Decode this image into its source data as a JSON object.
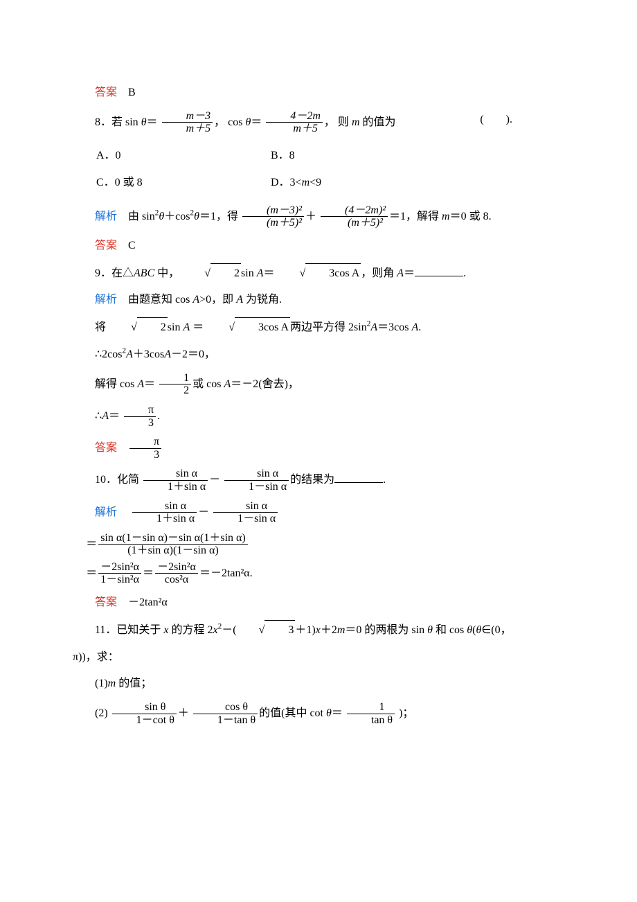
{
  "colors": {
    "red": "#d93025",
    "blue": "#1a6fd9",
    "black": "#000000",
    "bg": "#ffffff"
  },
  "typography": {
    "font_family": "SimSun, Times New Roman, serif",
    "body_fontsize_pt": 12,
    "line_height": 1.8
  },
  "labels": {
    "answer": "答案",
    "explain": "解析"
  },
  "q7": {
    "answer_value": "B"
  },
  "q8": {
    "stem_pre": "8．若 sin ",
    "var": "θ",
    "eq": "＝",
    "comma": "，",
    "frac1_num": "m－3",
    "frac1_den": "m＋5",
    "mid": "cos ",
    "frac2_num": "4－2m",
    "frac2_den": "m＋5",
    "stem_post": "则 ",
    "var2": "m",
    "stem_end": " 的值为",
    "paren": "(　　).",
    "optA": "A．0",
    "optB": "B．8",
    "optC": "C．0 或 8",
    "optD": "D．3<m<9",
    "optD_var": "m",
    "explain_pre": "由 sin",
    "explain_mid1": "θ＋cos",
    "explain_mid2": "θ＝1，得",
    "e_f1_num": "(m－3)²",
    "e_f1_den": "(m＋5)²",
    "plus": "＋",
    "e_f2_num": "(4－2m)²",
    "e_f2_den": "(m＋5)²",
    "explain_mid3": "＝1，解得 ",
    "explain_end": "＝0 或 8.",
    "answer_value": "C"
  },
  "q9": {
    "stem_pre": "9．在△",
    "abc": "ABC",
    "stem_mid1": " 中，",
    "sqrt_a": "2",
    "sin": "sin ",
    "A": "A",
    "eq": "＝",
    "sqrt_b_inner": "3cos A",
    "stem_mid2": "，则角 ",
    "stem_end": "＝",
    "blank_end": ".",
    "l1": "由题意知 cos ",
    "l1b": ">0，即 ",
    "l1c": " 为锐角.",
    "l2a": "将 ",
    "l2b": " ＝ ",
    "l2c": "两边平方得 2sin",
    "l2d": "＝3cos ",
    "l2e": ".",
    "l3": "∴2cos",
    "l3b": "＋3cos",
    "l3c": "－2＝0，",
    "l4": "解得 cos ",
    "l4b": "＝",
    "l4_num": "1",
    "l4_den": "2",
    "l4c": "或 cos ",
    "l4d": "＝－2(舍去)，",
    "l5": "∴",
    "l5b": "＝",
    "l5_num": "π",
    "l5_den": "3",
    "l5c": ".",
    "ans_num": "π",
    "ans_den": "3"
  },
  "q10": {
    "stem_pre": "10．化简",
    "f_num": "sin α",
    "f_den1": "1＋sin α",
    "minus": "－",
    "f_den2": "1－sin α",
    "stem_post": "的结果为",
    "blank_end": ".",
    "eq1_num": "sin α(1－sin α)－sin α(1＋sin α)",
    "eq1_den": "(1＋sin α)(1－sin α)",
    "eq2a_num": "－2sin²α",
    "eq2a_den": "1－sin²α",
    "eq2b_num": "－2sin²α",
    "eq2b_den": "cos²α",
    "eq2_end": "＝－2tan²α.",
    "answer_value": "－2tan²α"
  },
  "q11": {
    "stem": "11．已知关于 ",
    "x": "x",
    "stem2": " 的方程 2",
    "x2": "x",
    "stem3": "－(",
    "sqrt3": "3",
    "stem4": "＋1)",
    "stem5": "＋2",
    "m": "m",
    "stem6": "＝0 的两根为 sin ",
    "th": "θ",
    "stem7": " 和 cos ",
    "stem8": "(",
    "stem9": "∈(0，",
    "pi_line": "π))，求：",
    "part1": "(1)",
    "part1b": " 的值；",
    "part2": "(2)",
    "p2_f1_num": "sin θ",
    "p2_f1_den": "1－cot θ",
    "plus": "＋",
    "p2_f2_num": "cos θ",
    "p2_f2_den": "1－tan θ",
    "part2b": "的值(其中 cot ",
    "part2c": "＝",
    "p2_f3_num": "1",
    "p2_f3_den": "tan θ",
    "part2d": " )；"
  }
}
